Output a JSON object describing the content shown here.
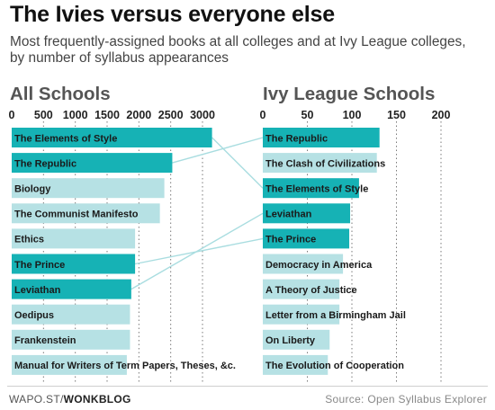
{
  "header": {
    "title": "The Ivies versus everyone else",
    "subtitle": "Most frequently-assigned books at all colleges and at Ivy League colleges, by number of syllabus appearances"
  },
  "footer": {
    "source_prefix": "WAPO.ST/",
    "source_brand": "WONKBLOG",
    "credit": "Source: Open Syllabus Explorer"
  },
  "colors": {
    "highlight": "#16b2b5",
    "plain": "#b6e1e4",
    "connector": "#a9dde0",
    "grid": "#7a7a7a"
  },
  "chart_data": [
    {
      "type": "bar",
      "orientation": "horizontal",
      "title": "All Schools",
      "xlim": [
        0,
        3000
      ],
      "ticks": [
        0,
        500,
        1000,
        1500,
        2000,
        2500,
        3000
      ],
      "grid": true,
      "categories": [
        "The Elements of Style",
        "The Republic",
        "Biology",
        "The Communist Manifesto",
        "Ethics",
        "The Prince",
        "Leviathan",
        "Oedipus",
        "Frankenstein",
        "Manual for Writers of Term Papers, Theses, &c."
      ],
      "values": [
        3150,
        2525,
        2400,
        2330,
        1940,
        1940,
        1880,
        1860,
        1860,
        1810
      ],
      "highlighted": [
        true,
        true,
        false,
        false,
        false,
        true,
        true,
        false,
        false,
        false
      ]
    },
    {
      "type": "bar",
      "orientation": "horizontal",
      "title": "Ivy League Schools",
      "xlim": [
        0,
        200
      ],
      "ticks": [
        0,
        50,
        100,
        150,
        200
      ],
      "grid": true,
      "categories": [
        "The Republic",
        "The Clash of Civilizations",
        "The Elements of Style",
        "Leviathan",
        "The Prince",
        "Democracy in America",
        "A Theory of Justice",
        "Letter from a Birmingham Jail",
        "On Liberty",
        "The Evolution of Cooperation"
      ],
      "values": [
        131,
        128,
        108,
        98,
        97,
        90,
        86,
        86,
        75,
        73
      ],
      "highlighted": [
        true,
        false,
        true,
        true,
        true,
        false,
        false,
        false,
        false,
        false
      ]
    }
  ]
}
